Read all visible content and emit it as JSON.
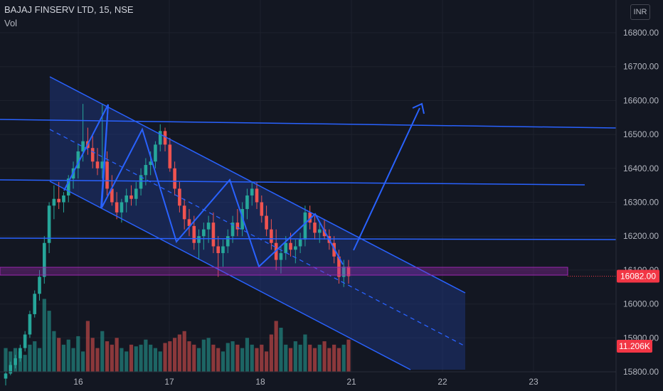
{
  "header": {
    "symbol": "BAJAJ FINSERV LTD, 15, NSE",
    "indicator": "Vol"
  },
  "currency_button": "INR",
  "colors": {
    "background": "#131722",
    "up": "#26a69a",
    "down": "#ef5350",
    "drawing": "#2962ff",
    "channel_fill": "#1e3a8a",
    "price_tag": "#f23645",
    "zone": "#9c27b0"
  },
  "chart_data": {
    "type": "candlestick",
    "y_axis": {
      "range": [
        15770,
        16870
      ],
      "ticks": [
        15800,
        15900,
        16000,
        16100,
        16200,
        16300,
        16400,
        16500,
        16600,
        16700,
        16800
      ],
      "tick_labels": [
        "15800.00",
        "15900.00",
        "16000.00",
        "16100.00",
        "16200.00",
        "16300.00",
        "16400.00",
        "16500.00",
        "16600.00",
        "16700.00",
        "16800.00"
      ]
    },
    "x_axis": {
      "ticks": [
        "16",
        "17",
        "18",
        "21",
        "22",
        "23"
      ]
    },
    "last_price_label": "16082.00",
    "last_price": 16082,
    "volume_label": "11.206K",
    "candles": [
      [
        15780,
        15800,
        15760,
        15795
      ],
      [
        15795,
        15830,
        15790,
        15820
      ],
      [
        15820,
        15850,
        15810,
        15840
      ],
      [
        15840,
        15880,
        15830,
        15870
      ],
      [
        15870,
        15920,
        15860,
        15910
      ],
      [
        15910,
        15980,
        15900,
        15970
      ],
      [
        15970,
        16040,
        15960,
        16030
      ],
      [
        16030,
        16100,
        16010,
        16080
      ],
      [
        16080,
        16200,
        16060,
        16180
      ],
      [
        16180,
        16300,
        16150,
        16290
      ],
      [
        16290,
        16350,
        16250,
        16310
      ],
      [
        16310,
        16360,
        16280,
        16300
      ],
      [
        16300,
        16330,
        16270,
        16320
      ],
      [
        16320,
        16380,
        16300,
        16370
      ],
      [
        16370,
        16420,
        16340,
        16400
      ],
      [
        16400,
        16470,
        16370,
        16450
      ],
      [
        16450,
        16590,
        16420,
        16480
      ],
      [
        16480,
        16520,
        16440,
        16460
      ],
      [
        16460,
        16500,
        16400,
        16420
      ],
      [
        16420,
        16460,
        16380,
        16400
      ],
      [
        16400,
        16590,
        16370,
        16420
      ],
      [
        16420,
        16450,
        16320,
        16340
      ],
      [
        16340,
        16380,
        16290,
        16300
      ],
      [
        16300,
        16330,
        16250,
        16270
      ],
      [
        16270,
        16310,
        16240,
        16300
      ],
      [
        16300,
        16340,
        16270,
        16320
      ],
      [
        16320,
        16350,
        16290,
        16310
      ],
      [
        16310,
        16360,
        16290,
        16340
      ],
      [
        16340,
        16400,
        16320,
        16380
      ],
      [
        16380,
        16430,
        16350,
        16410
      ],
      [
        16410,
        16450,
        16380,
        16420
      ],
      [
        16420,
        16480,
        16400,
        16470
      ],
      [
        16470,
        16530,
        16450,
        16510
      ],
      [
        16510,
        16520,
        16450,
        16470
      ],
      [
        16470,
        16490,
        16390,
        16400
      ],
      [
        16400,
        16420,
        16320,
        16340
      ],
      [
        16340,
        16360,
        16270,
        16290
      ],
      [
        16290,
        16310,
        16220,
        16250
      ],
      [
        16250,
        16280,
        16200,
        16230
      ],
      [
        16230,
        16260,
        16160,
        16180
      ],
      [
        16180,
        16220,
        16130,
        16200
      ],
      [
        16200,
        16240,
        16160,
        16220
      ],
      [
        16220,
        16260,
        16180,
        16240
      ],
      [
        16240,
        16270,
        16150,
        16170
      ],
      [
        16170,
        16200,
        16080,
        16150
      ],
      [
        16150,
        16190,
        16110,
        16170
      ],
      [
        16170,
        16220,
        16150,
        16200
      ],
      [
        16200,
        16260,
        16180,
        16240
      ],
      [
        16240,
        16280,
        16200,
        16220
      ],
      [
        16220,
        16300,
        16200,
        16280
      ],
      [
        16280,
        16340,
        16250,
        16320
      ],
      [
        16320,
        16360,
        16290,
        16340
      ],
      [
        16340,
        16360,
        16280,
        16300
      ],
      [
        16300,
        16320,
        16240,
        16260
      ],
      [
        16260,
        16290,
        16200,
        16220
      ],
      [
        16220,
        16250,
        16160,
        16180
      ],
      [
        16180,
        16220,
        16100,
        16130
      ],
      [
        16130,
        16170,
        16090,
        16150
      ],
      [
        16150,
        16200,
        16130,
        16180
      ],
      [
        16180,
        16210,
        16140,
        16160
      ],
      [
        16160,
        16190,
        16120,
        16170
      ],
      [
        16170,
        16210,
        16150,
        16190
      ],
      [
        16190,
        16290,
        16170,
        16270
      ],
      [
        16270,
        16290,
        16220,
        16240
      ],
      [
        16240,
        16260,
        16190,
        16210
      ],
      [
        16210,
        16240,
        16180,
        16220
      ],
      [
        16220,
        16250,
        16190,
        16200
      ],
      [
        16200,
        16220,
        16160,
        16180
      ],
      [
        16180,
        16200,
        16120,
        16140
      ],
      [
        16140,
        16160,
        16060,
        16080
      ],
      [
        16080,
        16130,
        16050,
        16110
      ],
      [
        16110,
        16130,
        16060,
        16082
      ]
    ],
    "volumes": [
      15870,
      15860,
      15870,
      15860,
      15850,
      15880,
      15890,
      15870,
      16015,
      15980,
      15920,
      15900,
      15880,
      15895,
      15870,
      15905,
      15860,
      15950,
      15900,
      15870,
      15920,
      15890,
      15880,
      15900,
      15870,
      15860,
      15880,
      15875,
      15880,
      15895,
      15880,
      15870,
      15860,
      15885,
      15890,
      15900,
      15910,
      15920,
      15890,
      15880,
      15870,
      15895,
      15900,
      15880,
      15870,
      15860,
      15885,
      15890,
      15880,
      15870,
      15900,
      15880,
      15870,
      15880,
      15860,
      15910,
      15950,
      15930,
      15880,
      15870,
      15890,
      15880,
      15910,
      15880,
      15870,
      15880,
      15890,
      15870,
      15880,
      15870,
      15880,
      15895
    ]
  }
}
